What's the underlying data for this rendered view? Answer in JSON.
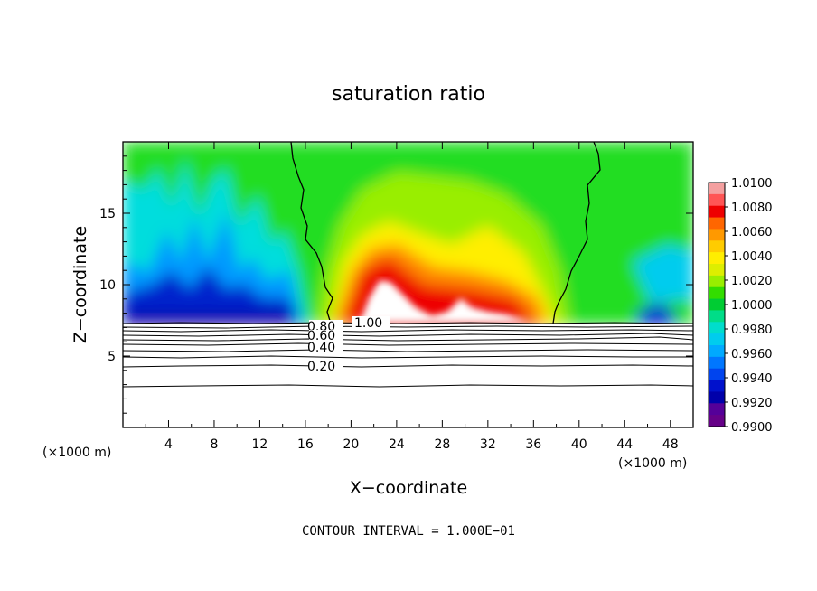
{
  "chart_data": {
    "type": "heatmap",
    "title": "saturation ratio",
    "xlabel": "X−coordinate",
    "ylabel": "Z−coordinate",
    "x_unit_left": "(×1000 m)",
    "x_unit_right": "(×1000 m)",
    "xlim": [
      0,
      50
    ],
    "ylim": [
      0,
      20
    ],
    "x_ticks": [
      "4",
      "8",
      "12",
      "16",
      "20",
      "24",
      "28",
      "32",
      "36",
      "40",
      "44",
      "48"
    ],
    "y_ticks": [
      "5",
      "10",
      "15"
    ],
    "footer": "CONTOUR INTERVAL = 1.000E−01",
    "colorbar": {
      "labels": [
        "1.0100",
        "1.0080",
        "1.0060",
        "1.0040",
        "1.0020",
        "1.0000",
        "0.9980",
        "0.9960",
        "0.9940",
        "0.9920",
        "0.9900"
      ],
      "colors": [
        "#f4a0a0",
        "#ff5555",
        "#ee0000",
        "#ff6600",
        "#ff9900",
        "#ffcc00",
        "#ffee00",
        "#ddee00",
        "#99ee00",
        "#33dd00",
        "#00cc33",
        "#00dd88",
        "#00ddcc",
        "#00ccee",
        "#00aaff",
        "#0077ff",
        "#0044ee",
        "#0011cc",
        "#0000aa",
        "#550099",
        "#660088"
      ]
    },
    "contour_labels": [
      "0.80",
      "1.00",
      "0.60",
      "0.40",
      "0.20"
    ],
    "contour_levels": [
      0.2,
      0.4,
      0.6,
      0.8,
      1.0
    ]
  }
}
